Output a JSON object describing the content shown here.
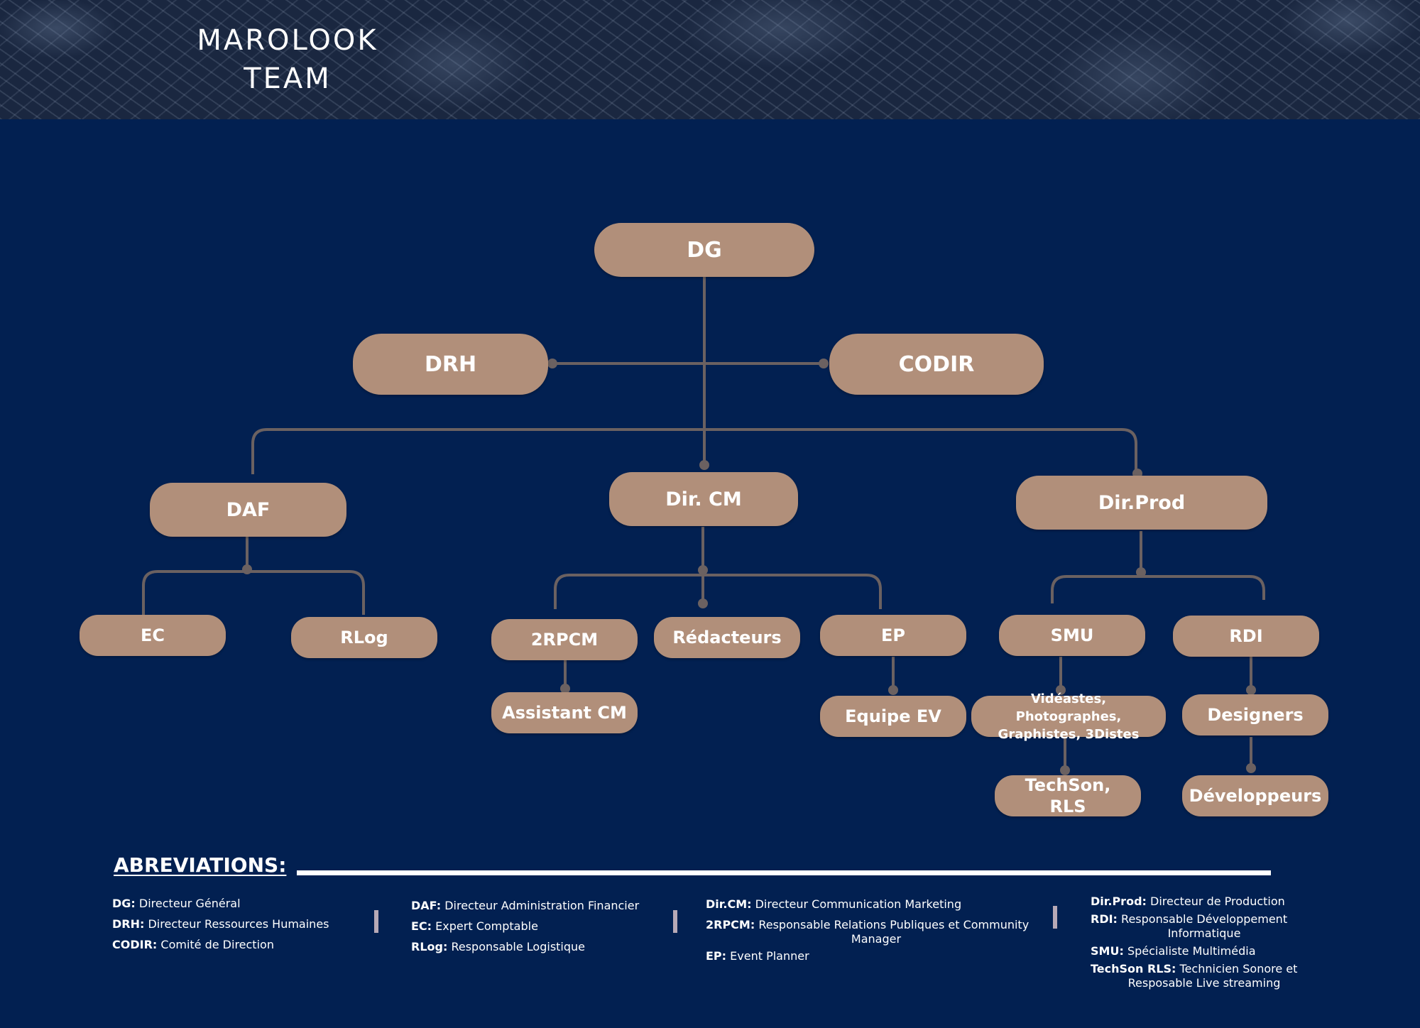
{
  "header": {
    "title_line1": "MAROLOOK",
    "title_line2": "TEAM"
  },
  "org_chart": {
    "nodes": {
      "dg": "DG",
      "drh": "DRH",
      "codir": "CODIR",
      "daf": "DAF",
      "dircm": "Dir. CM",
      "dirprod": "Dir.Prod",
      "ec": "EC",
      "rlog": "RLog",
      "rpcm": "2RPCM",
      "redacteurs": "Rédacteurs",
      "ep": "EP",
      "smu": "SMU",
      "rdi": "RDI",
      "assistant_cm": "Assistant CM",
      "equipe_ev": "Equipe EV",
      "videastes": "Vidéastes, Photographes, Graphistes, 3Distes",
      "designers": "Designers",
      "techson": "TechSon, RLS",
      "developpeurs": "Développeurs"
    },
    "colors": {
      "background": "#022051",
      "node": "#b18f7a",
      "connector": "#6b6161",
      "text": "#ffffff"
    }
  },
  "abbreviations": {
    "heading": "ABREVIATIONS:",
    "col1": [
      {
        "key": "DG:",
        "desc": "Directeur Général"
      },
      {
        "key": "DRH:",
        "desc": "Directeur Ressources Humaines"
      },
      {
        "key": "CODIR:",
        "desc": "Comité de Direction"
      }
    ],
    "col2": [
      {
        "key": "DAF:",
        "desc": "Directeur Administration Financier"
      },
      {
        "key": "EC:",
        "desc": "Expert Comptable"
      },
      {
        "key": "RLog:",
        "desc": "Responsable Logistique"
      }
    ],
    "col3": [
      {
        "key": "Dir.CM:",
        "desc": "Directeur Communication Marketing"
      },
      {
        "key": "2RPCM:",
        "desc": "Responsable Relations Publiques et Community",
        "cont": "Manager"
      },
      {
        "key": "EP:",
        "desc": "Event Planner"
      }
    ],
    "col4": [
      {
        "key": "Dir.Prod:",
        "desc": "Directeur de Production"
      },
      {
        "key": "RDI:",
        "desc": "Responsable Développement",
        "cont": "Informatique"
      },
      {
        "key": "SMU:",
        "desc": "Spécialiste Multimédia"
      },
      {
        "key": "TechSon RLS:",
        "desc": "Technicien Sonore et",
        "cont": "Resposable Live streaming"
      }
    ]
  }
}
